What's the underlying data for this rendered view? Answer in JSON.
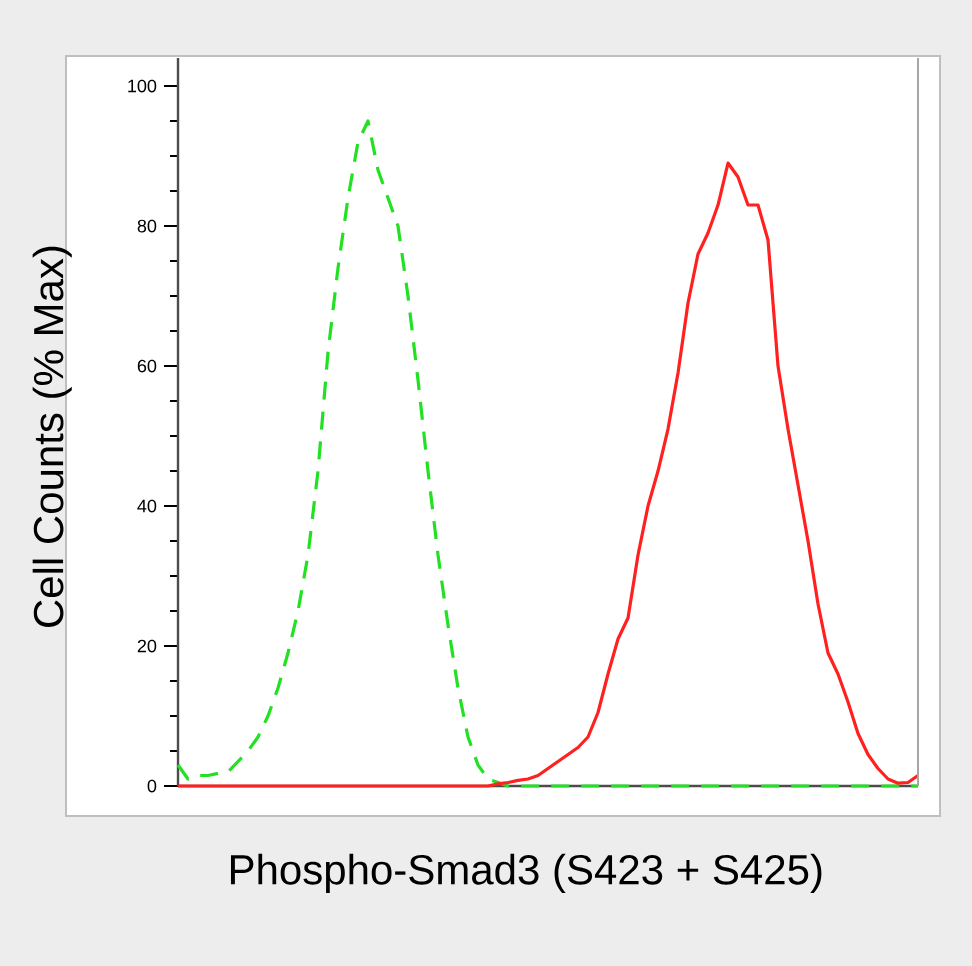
{
  "chart_data": {
    "type": "line",
    "ylabel": "Cell Counts (% Max)",
    "xlabel": "Phospho-Smad3 (S423 + S425)",
    "categories": [
      null,
      null,
      null,
      null,
      null,
      null,
      null,
      null,
      null,
      null,
      null,
      null,
      null,
      null,
      null,
      null,
      null,
      null,
      null,
      null,
      null,
      null,
      null,
      null,
      null,
      null,
      null,
      null,
      null,
      null,
      null,
      null,
      null,
      null,
      null,
      null,
      null,
      null,
      null,
      null,
      null,
      null,
      null,
      null,
      null,
      null,
      null,
      null,
      null,
      null,
      null,
      null,
      null,
      null,
      null,
      null,
      null,
      null,
      null,
      null,
      null,
      null,
      null,
      null,
      null,
      null,
      null,
      null,
      null,
      null,
      null,
      null,
      null,
      null,
      null
    ],
    "series": [
      {
        "color": "#22e022",
        "line_style": "dashed",
        "values": [
          3,
          1,
          1.5,
          1.5,
          1.8,
          2,
          3.5,
          5,
          7,
          10,
          14,
          19,
          25,
          33,
          45,
          62,
          74,
          84,
          92,
          95,
          88,
          84,
          80,
          70,
          58,
          45,
          33,
          23,
          14,
          7,
          3,
          1,
          0.5,
          0,
          0,
          0,
          0,
          0,
          0,
          0,
          0,
          0,
          0,
          0,
          0,
          0,
          0,
          0,
          0,
          0,
          0,
          0,
          0,
          0,
          0,
          0,
          0,
          0,
          0,
          0,
          0,
          0,
          0,
          0,
          0,
          0,
          0,
          0,
          0,
          0,
          0,
          0,
          0,
          0,
          0
        ]
      },
      {
        "color": "#ff2020",
        "line_style": "solid",
        "values": [
          0,
          0,
          0,
          0,
          0,
          0,
          0,
          0,
          0,
          0,
          0,
          0,
          0,
          0,
          0,
          0,
          0,
          0,
          0,
          0,
          0,
          0,
          0,
          0,
          0,
          0,
          0,
          0,
          0,
          0,
          0,
          0,
          0.3,
          0.5,
          0.8,
          1,
          1.5,
          2.5,
          3.5,
          4.5,
          5.5,
          7,
          10.5,
          16,
          21,
          24,
          33,
          40,
          45,
          51,
          59,
          69,
          76,
          79,
          83,
          89,
          87,
          83,
          83,
          78,
          60,
          51,
          43,
          35,
          26,
          19,
          16,
          12,
          7.5,
          4.5,
          2.5,
          1,
          0.4,
          0.5,
          1.5
        ]
      }
    ],
    "ylim": [
      0,
      104
    ],
    "yticks": [
      0,
      20,
      40,
      60,
      80,
      100
    ],
    "tick_labels": "y"
  }
}
